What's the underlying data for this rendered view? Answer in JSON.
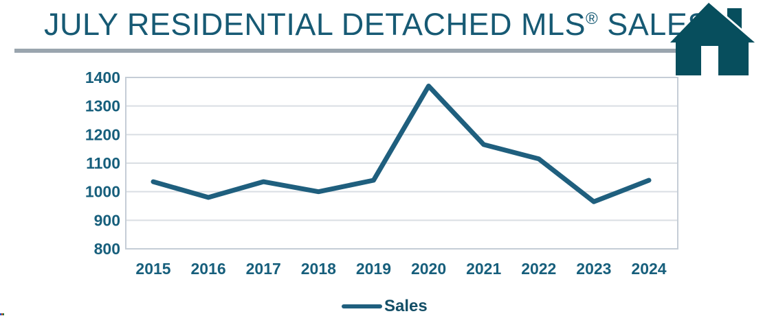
{
  "header": {
    "title_prefix": "JULY RESIDENTIAL DETACHED MLS",
    "title_registered": "®",
    "title_suffix": " SALES",
    "icon": "house-icon"
  },
  "colors": {
    "background": "#ffffff",
    "title": "#175a74",
    "axis_label": "#175f7c",
    "legend_label": "#134e66",
    "line": "#1f5f7e",
    "house": "#074e5d",
    "separator": "#9aa5ae",
    "gridline": "#d9dee3",
    "plot_border": "#c5cdd6"
  },
  "chart_data": {
    "type": "line",
    "title": "JULY RESIDENTIAL DETACHED MLS® SALES",
    "categories": [
      "2015",
      "2016",
      "2017",
      "2018",
      "2019",
      "2020",
      "2021",
      "2022",
      "2023",
      "2024"
    ],
    "series": [
      {
        "name": "Sales",
        "values": [
          1035,
          980,
          1035,
          1000,
          1040,
          1370,
          1165,
          1115,
          965,
          1040
        ]
      }
    ],
    "xlabel": "",
    "ylabel": "",
    "ylim": [
      800,
      1400
    ],
    "ytick_step": 100,
    "grid": true,
    "legend_position": "bottom"
  }
}
